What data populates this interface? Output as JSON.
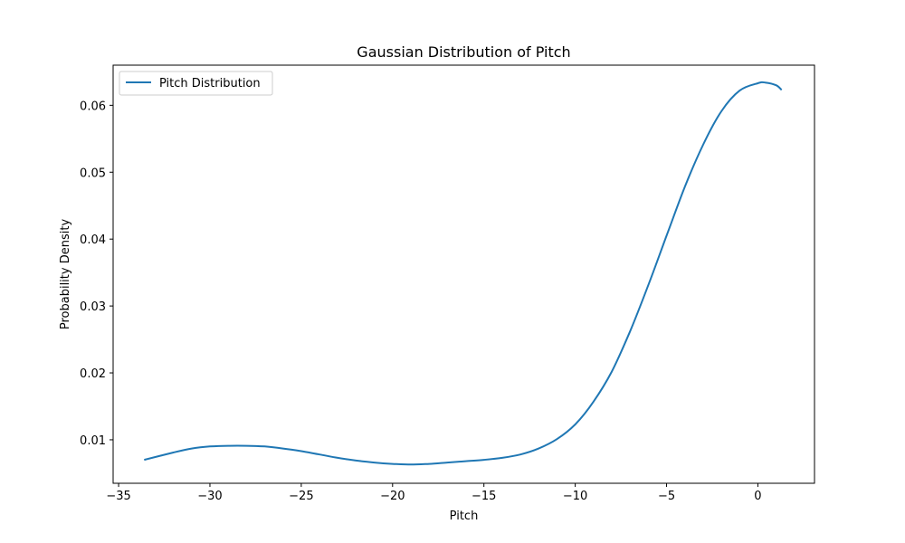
{
  "chart_data": {
    "type": "line",
    "title": "Gaussian Distribution of Pitch",
    "xlabel": "Pitch",
    "ylabel": "Probability Density",
    "xlim": [
      -35.3,
      3.1
    ],
    "ylim": [
      0.0035,
      0.066
    ],
    "x_ticks": [
      -35,
      -30,
      -25,
      -20,
      -15,
      -10,
      -5,
      0
    ],
    "x_tick_labels": [
      "−35",
      "−30",
      "−25",
      "−20",
      "−15",
      "−10",
      "−5",
      "0"
    ],
    "y_ticks": [
      0.01,
      0.02,
      0.03,
      0.04,
      0.05,
      0.06
    ],
    "y_tick_labels": [
      "0.01",
      "0.02",
      "0.03",
      "0.04",
      "0.05",
      "0.06"
    ],
    "grid": false,
    "legend": {
      "placement": "upper-left"
    },
    "series": [
      {
        "name": "Pitch Distribution",
        "color": "#1f77b4",
        "x": [
          -33.6,
          -32,
          -31,
          -30,
          -29,
          -28,
          -27,
          -26,
          -25,
          -24,
          -23,
          -22,
          -21,
          -20,
          -19,
          -18,
          -17,
          -16,
          -15,
          -14,
          -13,
          -12,
          -11,
          -10,
          -9,
          -8,
          -7,
          -6,
          -5,
          -4,
          -3,
          -2,
          -1,
          0,
          0.4,
          1,
          1.3
        ],
        "y": [
          0.007,
          0.0081,
          0.0087,
          0.009,
          0.0091,
          0.0091,
          0.009,
          0.0087,
          0.0083,
          0.0078,
          0.0073,
          0.0069,
          0.0066,
          0.0064,
          0.0063,
          0.0064,
          0.0066,
          0.0068,
          0.007,
          0.0073,
          0.0078,
          0.0087,
          0.0101,
          0.0123,
          0.0157,
          0.0202,
          0.0262,
          0.0331,
          0.0405,
          0.0478,
          0.0541,
          0.0591,
          0.0622,
          0.0633,
          0.0634,
          0.063,
          0.0623
        ]
      }
    ]
  }
}
